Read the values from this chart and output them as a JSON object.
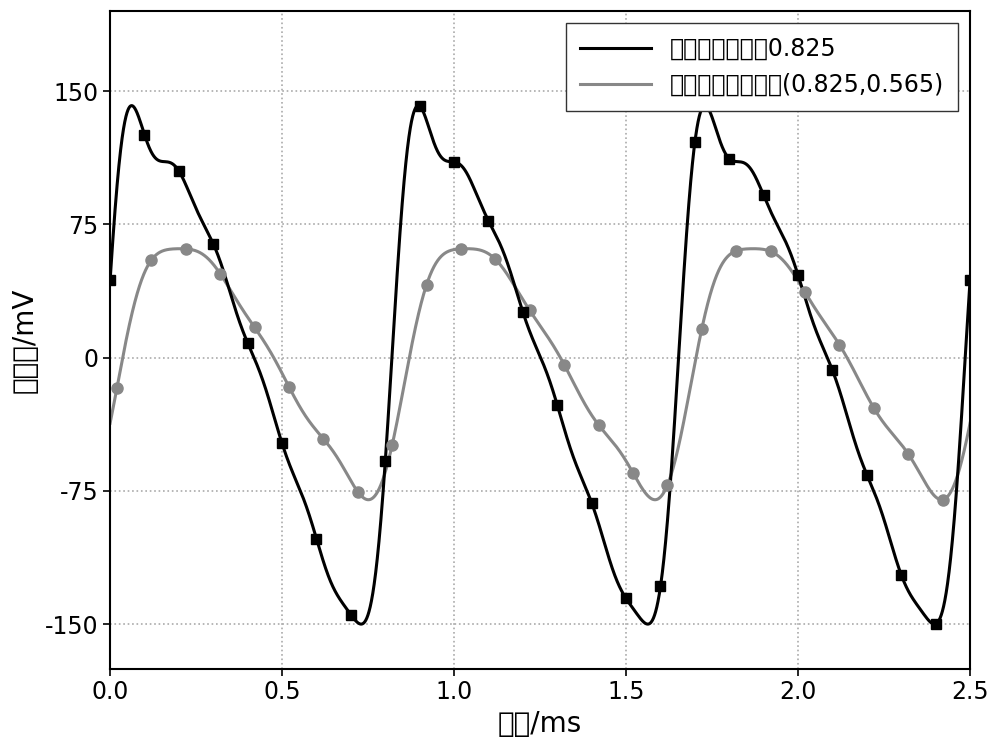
{
  "xlabel": "时间/ms",
  "ylabel": "轴电压/mV",
  "xlim": [
    0.0,
    2.5
  ],
  "ylim": [
    -175,
    195
  ],
  "yticks": [
    -150,
    -75,
    0,
    75,
    150
  ],
  "xticks": [
    0.0,
    0.5,
    1.0,
    1.5,
    2.0,
    2.5
  ],
  "legend1": "原模型极弧系数0.825",
  "legend2": "不同极弧系数组合(0.825,0.565)",
  "line1_color": "#000000",
  "line2_color": "#888888",
  "background_color": "#ffffff",
  "grid_color": "#aaaaaa",
  "fontsize_label": 20,
  "fontsize_tick": 17,
  "fontsize_legend": 17,
  "period": 0.8333
}
